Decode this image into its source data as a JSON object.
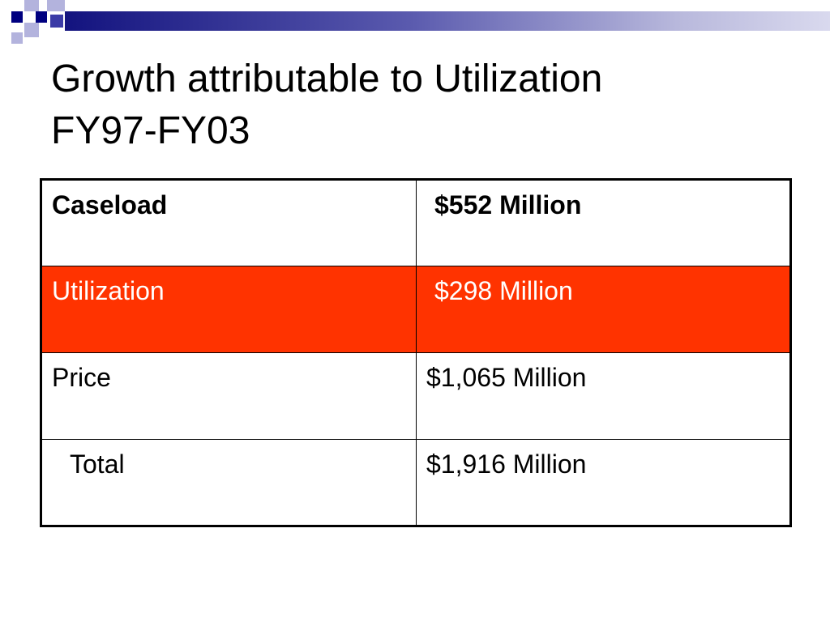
{
  "title": {
    "line1": "Growth attributable to Utilization",
    "line2": "FY97-FY03"
  },
  "table": {
    "rows": [
      {
        "label": "Caseload",
        "value": "$552 Million",
        "style": "bold"
      },
      {
        "label": "Utilization",
        "value": "$298 Million",
        "style": "highlight"
      },
      {
        "label": "Price",
        "value": "$1,065 Million",
        "style": "normal"
      },
      {
        "label": "Total",
        "value": "$1,916 Million",
        "style": "normal"
      }
    ]
  },
  "colors": {
    "highlight_row": "#ff3300",
    "highlight_text": "#ffffff",
    "header_navy": "#000080",
    "header_lavender": "#b3b3dd"
  }
}
